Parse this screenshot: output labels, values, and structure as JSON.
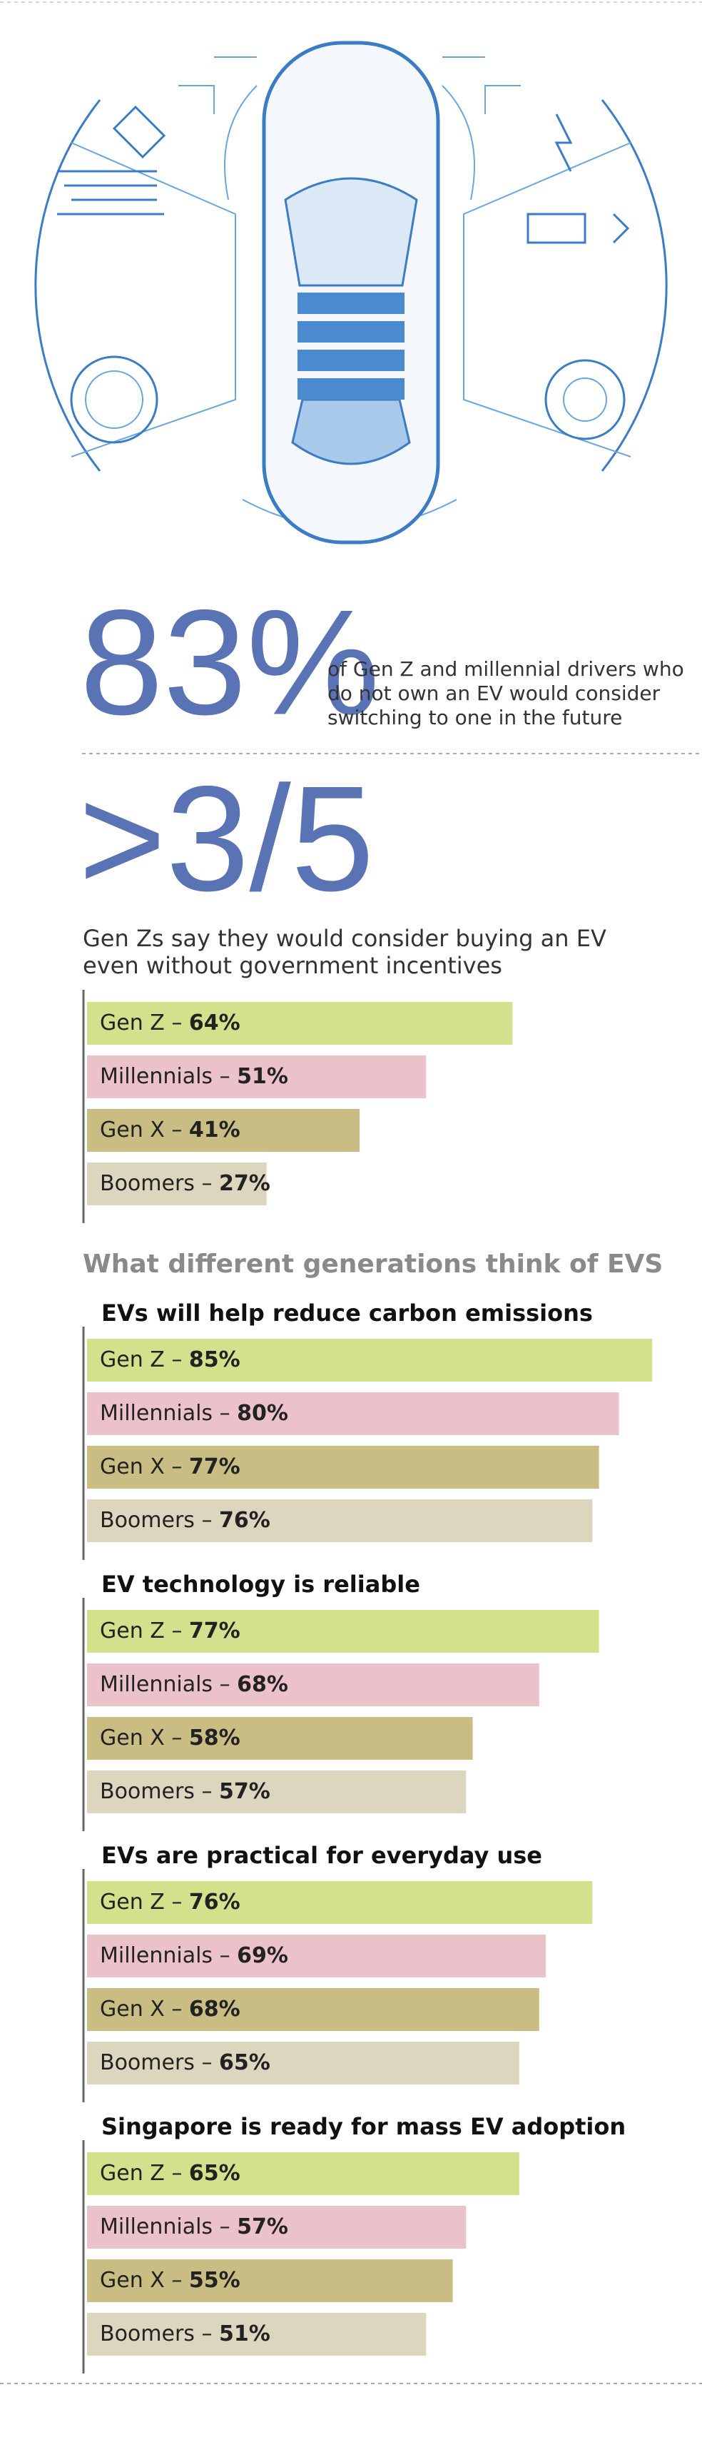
{
  "stats": [
    {
      "figure": "83%",
      "text": [
        "of Gen Z and millennial drivers who",
        "do not own an EV would consider",
        "switching to one in the future"
      ]
    },
    {
      "figure": ">3/5",
      "text": [
        "Gen Zs say they would consider buying an EV",
        "even without government incentives"
      ]
    }
  ],
  "section_title": "What different generations think of EVS",
  "chart_data": [
    {
      "type": "bar",
      "categories": [
        "Gen Z –",
        "Millennials –",
        "Gen X –",
        "Boomers –"
      ],
      "values": [
        64,
        51,
        41,
        27
      ],
      "value_labels": [
        "64%",
        "51%",
        "41%",
        "27%"
      ],
      "colors": [
        "#d5e08c",
        "#ecc2ca",
        "#c9bd83",
        "#ddd6be"
      ]
    },
    {
      "type": "bar",
      "title": "EVs will help reduce carbon emissions",
      "categories": [
        "Gen Z –",
        "Millennials –",
        "Gen X –",
        "Boomers –"
      ],
      "values": [
        85,
        80,
        77,
        76
      ],
      "value_labels": [
        "85%",
        "80%",
        "77%",
        "76%"
      ],
      "colors": [
        "#d5e08c",
        "#ecc2ca",
        "#c9bd83",
        "#ddd6be"
      ]
    },
    {
      "type": "bar",
      "title": "EV technology is reliable",
      "categories": [
        "Gen Z –",
        "Millennials –",
        "Gen X –",
        "Boomers –"
      ],
      "values": [
        77,
        68,
        58,
        57
      ],
      "value_labels": [
        "77%",
        "68%",
        "58%",
        "57%"
      ],
      "colors": [
        "#d5e08c",
        "#ecc2ca",
        "#c9bd83",
        "#ddd6be"
      ]
    },
    {
      "type": "bar",
      "title": "EVs are practical for everyday use",
      "categories": [
        "Gen Z –",
        "Millennials –",
        "Gen X –",
        "Boomers –"
      ],
      "values": [
        76,
        69,
        68,
        65
      ],
      "value_labels": [
        "76%",
        "69%",
        "68%",
        "65%"
      ],
      "colors": [
        "#d5e08c",
        "#ecc2ca",
        "#c9bd83",
        "#ddd6be"
      ]
    },
    {
      "type": "bar",
      "title": "Singapore is ready for mass EV adoption",
      "categories": [
        "Gen Z –",
        "Millennials –",
        "Gen X –",
        "Boomers –"
      ],
      "values": [
        65,
        57,
        55,
        51
      ],
      "value_labels": [
        "65%",
        "57%",
        "55%",
        "51%"
      ],
      "colors": [
        "#d5e08c",
        "#ecc2ca",
        "#c9bd83",
        "#ddd6be"
      ]
    }
  ]
}
